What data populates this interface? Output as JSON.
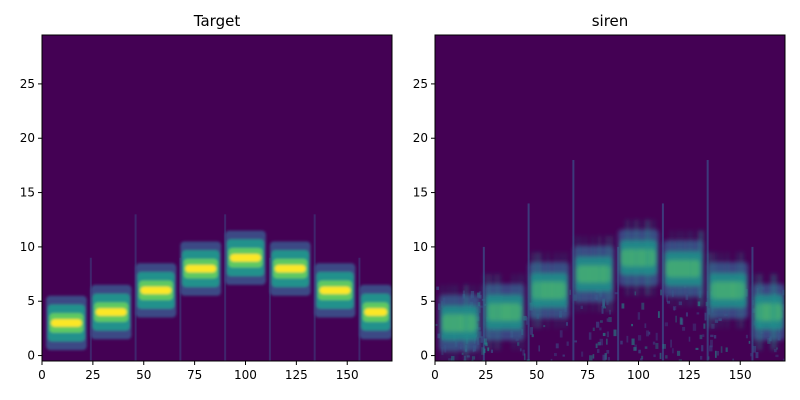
{
  "colors": {
    "background": "#440154",
    "low": "#3b528b",
    "mid": "#21918c",
    "high": "#5ec962",
    "peak": "#fde725"
  },
  "chart_data": [
    {
      "type": "heatmap",
      "title": "Target",
      "xlabel": "",
      "ylabel": "",
      "xlim": [
        0,
        172
      ],
      "ylim": [
        -0.5,
        29.5
      ],
      "xticks": [
        0,
        25,
        50,
        75,
        100,
        125,
        150
      ],
      "yticks": [
        0,
        5,
        10,
        15,
        20,
        25
      ],
      "colormap": "viridis",
      "notes": [
        {
          "x_start": 2,
          "x_end": 22,
          "y": 3
        },
        {
          "x_start": 24,
          "x_end": 44,
          "y": 4
        },
        {
          "x_start": 46,
          "x_end": 66,
          "y": 6
        },
        {
          "x_start": 68,
          "x_end": 88,
          "y": 8
        },
        {
          "x_start": 90,
          "x_end": 110,
          "y": 9
        },
        {
          "x_start": 112,
          "x_end": 132,
          "y": 8
        },
        {
          "x_start": 134,
          "x_end": 154,
          "y": 6
        },
        {
          "x_start": 156,
          "x_end": 172,
          "y": 4
        }
      ],
      "onsets": [
        24,
        46,
        68,
        90,
        112,
        134,
        156
      ]
    },
    {
      "type": "heatmap",
      "title": "siren",
      "xlabel": "",
      "ylabel": "",
      "xlim": [
        0,
        172
      ],
      "ylim": [
        -0.5,
        29.5
      ],
      "xticks": [
        0,
        25,
        50,
        75,
        100,
        125,
        150
      ],
      "yticks": [
        0,
        5,
        10,
        15,
        20,
        25
      ],
      "colormap": "viridis",
      "notes": [
        {
          "x_start": 2,
          "x_end": 22,
          "y": 3
        },
        {
          "x_start": 24,
          "x_end": 44,
          "y": 4
        },
        {
          "x_start": 46,
          "x_end": 66,
          "y": 6
        },
        {
          "x_start": 68,
          "x_end": 88,
          "y": 7.5
        },
        {
          "x_start": 90,
          "x_end": 110,
          "y": 9
        },
        {
          "x_start": 112,
          "x_end": 132,
          "y": 8
        },
        {
          "x_start": 134,
          "x_end": 154,
          "y": 6
        },
        {
          "x_start": 156,
          "x_end": 172,
          "y": 4
        }
      ],
      "onsets": [
        24,
        46,
        68,
        90,
        112,
        134,
        156
      ]
    }
  ]
}
